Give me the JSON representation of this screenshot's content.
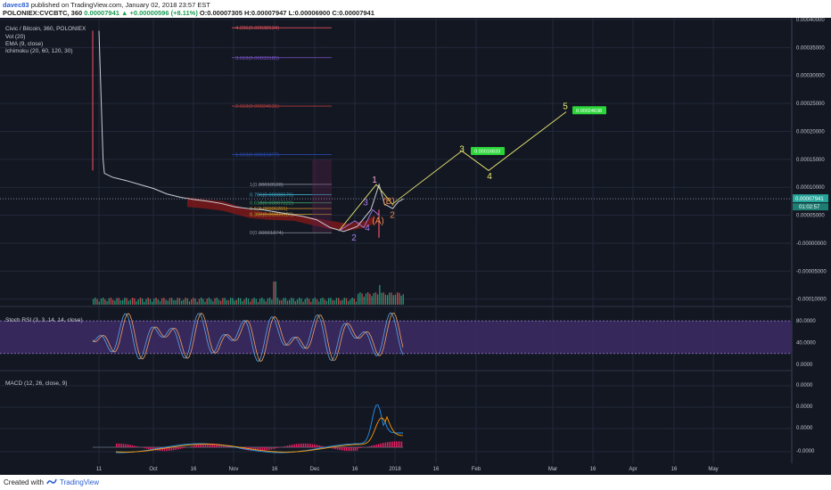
{
  "header": {
    "author": "davec83",
    "published": "published on TradingView.com, January 02, 2018 23:57 EST",
    "symbol": "POLONIEX:CVCBTC, 360",
    "ohlc_change": "0.00007941 ▲ +0.00000596 (+8.11%)",
    "ohlc_rest": "O:0.00007305 H:0.00007947 L:0.00006900 C:0.00007941"
  },
  "footer": {
    "created_with": "Created with",
    "brand": "TradingView"
  },
  "legend": {
    "title": "Civic / Bitcoin, 360, POLONIEX",
    "vol": "Vol (20)",
    "ema": "EMA (9, close)",
    "ichimoku": "Ichimoku (20, 60, 120, 30)",
    "stoch": "Stoch RSI (3, 3, 14, 14, close)",
    "macd": "MACD (12, 26, close, 9)"
  },
  "colors": {
    "background": "#131722",
    "grid": "#22293a",
    "price_line": "#c9ccd4",
    "cloud": "#8b1a1a",
    "wave_purple": "#a77de8",
    "wave_yellow": "#e8e870",
    "wave_orange": "#f08a4b",
    "wave_pink": "#f7a8e0",
    "target_box": "#2bd53a",
    "stoch_band": "#3c2a63",
    "macd_blue": "#2196f3",
    "macd_orange": "#ff9800",
    "macd_hist": "#e91e63"
  },
  "chart_data": {
    "type": "line",
    "price_axis": {
      "ticks": [
        "0.00040000",
        "0.00035000",
        "0.00030000",
        "0.00025000",
        "0.00020000",
        "0.00015000",
        "0.00010000",
        "0.00005000",
        "-0.00000000",
        "-0.00005000",
        "-0.00010000"
      ],
      "ylim": [
        -0.00011,
        0.0004
      ],
      "current_price": "0.00007941",
      "countdown": "01:02:57"
    },
    "x_ticks": [
      "11",
      "Oct",
      "16",
      "Nov",
      "16",
      "Dec",
      "16",
      "2018",
      "16",
      "Feb",
      "Mar",
      "16",
      "Apr",
      "16",
      "May"
    ],
    "price_series": {
      "x": [
        0,
        1.5,
        2,
        5,
        10,
        15,
        20,
        25,
        30,
        35,
        40,
        45,
        50,
        55,
        60,
        65,
        70,
        75,
        80,
        85,
        90,
        95,
        100,
        103,
        105,
        108,
        110,
        112
      ],
      "y": [
        0.00038,
        0.00015,
        0.000125,
        0.000118,
        0.000112,
        0.000105,
        9.8e-05,
        8.8e-05,
        8.2e-05,
        7.8e-05,
        7.5e-05,
        7.1e-05,
        6.5e-05,
        6.2e-05,
        6e-05,
        5.6e-05,
        5.2e-05,
        4.8e-05,
        4.2e-05,
        2.8e-05,
        2.1e-05,
        3e-05,
        6e-05,
        0.000105,
        7e-05,
        6.2e-05,
        7.4e-05,
        7.94e-05
      ]
    },
    "fibonacci": [
      {
        "label": "4.236(0.00038534)",
        "value": 0.00038534
      },
      {
        "label": "3.618(0.00033185)",
        "value": 0.00033185
      },
      {
        "label": "2.618(0.00024531)",
        "value": 0.00024531
      },
      {
        "label": "1.618(0.00015877)",
        "value": 0.00015877
      },
      {
        "label": "1(0.00010528)",
        "value": 0.00010528
      },
      {
        "label": "0.786(0.00008676)",
        "value": 8.676e-05
      },
      {
        "label": "0.618(0.00007222)",
        "value": 7.222e-05
      },
      {
        "label": "0.5(0.00006201)",
        "value": 6.201e-05
      },
      {
        "label": "0.382(0.00005180)",
        "value": 5.18e-05
      },
      {
        "label": "0(0.00001874)",
        "value": 1.874e-05
      }
    ],
    "wave_labels": [
      {
        "text": "1",
        "color": "pink"
      },
      {
        "text": "2",
        "color": "purple"
      },
      {
        "text": "3",
        "color": "purple"
      },
      {
        "text": "4",
        "color": "purple"
      },
      {
        "text": "(A)",
        "color": "orange"
      },
      {
        "text": "(B)",
        "color": "orange"
      },
      {
        "text": "2",
        "color": "orange"
      },
      {
        "text": "3",
        "color": "yellow"
      },
      {
        "text": "4",
        "color": "yellow"
      },
      {
        "text": "5",
        "color": "yellow"
      }
    ],
    "targets": [
      {
        "label": "0.00016833",
        "value": 0.00016833
      },
      {
        "label": "0.00024638",
        "value": 0.00024638
      }
    ],
    "stoch_axis": {
      "ticks": [
        "80.0000",
        "40.0000",
        "0.0000"
      ],
      "ylim": [
        -5,
        100
      ]
    },
    "macd_axis": {
      "ticks": [
        "0.0000",
        "0.0000",
        "0.0000",
        "-0.0000"
      ]
    }
  }
}
